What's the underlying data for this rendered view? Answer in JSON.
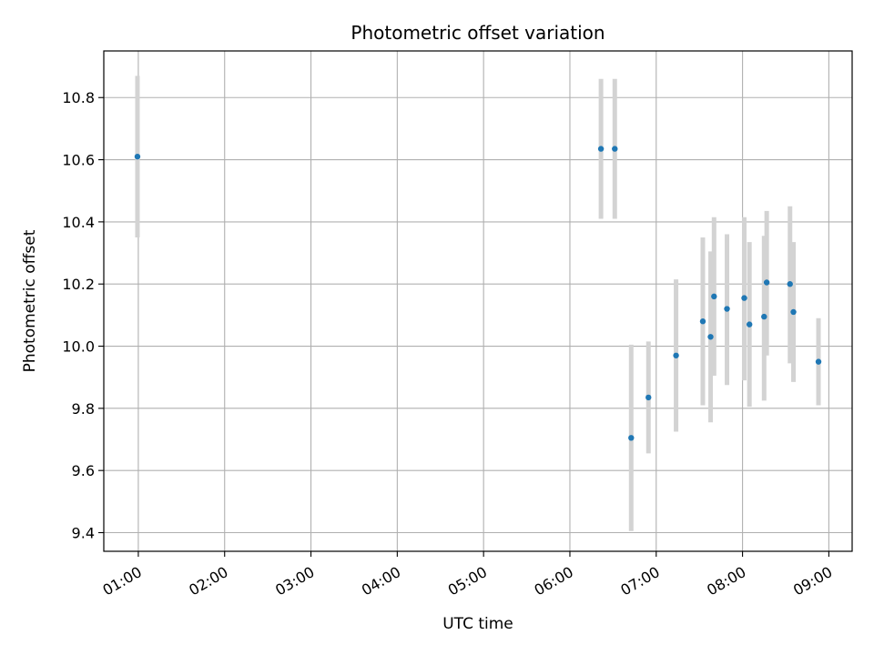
{
  "chart_data": {
    "type": "scatter",
    "title": "Photometric offset variation",
    "xlabel": "UTC time",
    "ylabel": "Photometric offset",
    "x_unit": "hours (UTC)",
    "xlim": [
      0.6,
      9.27
    ],
    "ylim": [
      9.34,
      10.95
    ],
    "x_ticks": [
      {
        "value": 1,
        "label": "01:00"
      },
      {
        "value": 2,
        "label": "02:00"
      },
      {
        "value": 3,
        "label": "03:00"
      },
      {
        "value": 4,
        "label": "04:00"
      },
      {
        "value": 5,
        "label": "05:00"
      },
      {
        "value": 6,
        "label": "06:00"
      },
      {
        "value": 7,
        "label": "07:00"
      },
      {
        "value": 8,
        "label": "08:00"
      },
      {
        "value": 9,
        "label": "09:00"
      }
    ],
    "y_ticks": [
      {
        "value": 9.4,
        "label": "9.4"
      },
      {
        "value": 9.6,
        "label": "9.6"
      },
      {
        "value": 9.8,
        "label": "9.8"
      },
      {
        "value": 10.0,
        "label": "10.0"
      },
      {
        "value": 10.2,
        "label": "10.2"
      },
      {
        "value": 10.4,
        "label": "10.4"
      },
      {
        "value": 10.6,
        "label": "10.6"
      },
      {
        "value": 10.8,
        "label": "10.8"
      }
    ],
    "grid": true,
    "point_color": "#1f77b4",
    "errorbar_color": "#d3d3d3",
    "points": [
      {
        "x": 0.99,
        "y": 10.61,
        "lo": 10.35,
        "hi": 10.87
      },
      {
        "x": 6.36,
        "y": 10.635,
        "lo": 10.41,
        "hi": 10.86
      },
      {
        "x": 6.52,
        "y": 10.635,
        "lo": 10.41,
        "hi": 10.86
      },
      {
        "x": 6.71,
        "y": 9.705,
        "lo": 9.405,
        "hi": 10.005
      },
      {
        "x": 6.91,
        "y": 9.835,
        "lo": 9.655,
        "hi": 10.015
      },
      {
        "x": 7.23,
        "y": 9.97,
        "lo": 9.725,
        "hi": 10.215
      },
      {
        "x": 7.54,
        "y": 10.08,
        "lo": 9.81,
        "hi": 10.35
      },
      {
        "x": 7.63,
        "y": 10.03,
        "lo": 9.755,
        "hi": 10.305
      },
      {
        "x": 7.67,
        "y": 10.16,
        "lo": 9.905,
        "hi": 10.415
      },
      {
        "x": 7.82,
        "y": 10.12,
        "lo": 9.875,
        "hi": 10.36
      },
      {
        "x": 8.02,
        "y": 10.155,
        "lo": 9.89,
        "hi": 10.415
      },
      {
        "x": 8.08,
        "y": 10.07,
        "lo": 9.805,
        "hi": 10.335
      },
      {
        "x": 8.25,
        "y": 10.095,
        "lo": 9.825,
        "hi": 10.355
      },
      {
        "x": 8.28,
        "y": 10.205,
        "lo": 9.97,
        "hi": 10.435
      },
      {
        "x": 8.55,
        "y": 10.2,
        "lo": 9.945,
        "hi": 10.45
      },
      {
        "x": 8.59,
        "y": 10.11,
        "lo": 9.885,
        "hi": 10.335
      },
      {
        "x": 8.88,
        "y": 9.95,
        "lo": 9.81,
        "hi": 10.09
      }
    ]
  }
}
